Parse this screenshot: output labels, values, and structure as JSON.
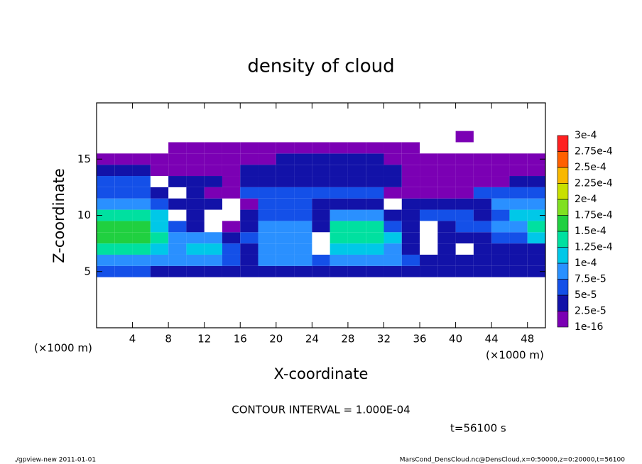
{
  "chart_data": {
    "type": "contour",
    "title": "density of cloud",
    "x_label": "X-coordinate",
    "y_label": "Z-coordinate",
    "x_unit_left": "(×1000 m)",
    "x_unit_right": "(×1000 m)",
    "contour_note": "CONTOUR INTERVAL = 1.000E-04",
    "time_note": "t=56100 s",
    "footer_left": "./gpview-new  2011-01-01",
    "footer_right": "MarsCond_DensCloud.nc@DensCloud,x=0:50000,z=0:20000,t=56100",
    "xlim": [
      0,
      50
    ],
    "ylim": [
      0,
      20
    ],
    "xticks": [
      4,
      8,
      12,
      16,
      20,
      24,
      28,
      32,
      36,
      40,
      44,
      48
    ],
    "yticks": [
      5,
      10,
      15
    ],
    "x": [
      1,
      3,
      5,
      7,
      9,
      11,
      13,
      15,
      17,
      19,
      21,
      23,
      25,
      27,
      29,
      31,
      33,
      35,
      37,
      39,
      41,
      43,
      45,
      47,
      49
    ],
    "y": [
      5,
      6,
      7,
      8,
      9,
      10,
      11,
      12,
      13,
      14,
      15,
      16,
      17
    ],
    "z": [
      [
        5e-05,
        5e-05,
        5e-05,
        4e-05,
        4e-05,
        4e-05,
        4e-05,
        4e-05,
        4e-05,
        4e-05,
        4e-05,
        4e-05,
        4e-05,
        4e-05,
        4e-05,
        4e-05,
        4e-05,
        4e-05,
        4e-05,
        4e-05,
        4e-05,
        4e-05,
        4e-05,
        4e-05,
        4e-05
      ],
      [
        9e-05,
        9e-05,
        9e-05,
        8e-05,
        8e-05,
        8e-05,
        8e-05,
        5e-05,
        4e-05,
        8e-05,
        8e-05,
        8e-05,
        5e-05,
        8e-05,
        8e-05,
        8e-05,
        8e-05,
        5e-05,
        3e-05,
        3e-05,
        3e-05,
        3e-05,
        3e-05,
        3e-05,
        3e-05
      ],
      [
        0.00013,
        0.00013,
        0.00013,
        0.00011,
        9e-05,
        0.00011,
        0.00011,
        6e-05,
        4e-05,
        9e-05,
        9e-05,
        9e-05,
        null,
        0.00012,
        0.00012,
        0.00012,
        9e-05,
        4e-05,
        null,
        3e-05,
        null,
        3e-05,
        4e-05,
        4e-05,
        4e-05
      ],
      [
        0.00015,
        0.00015,
        0.00015,
        0.00013,
        8e-05,
        9e-05,
        8e-05,
        4e-05,
        5e-05,
        9e-05,
        9e-05,
        9e-05,
        null,
        0.00014,
        0.00014,
        0.00014,
        0.0001,
        4e-05,
        null,
        3e-05,
        4e-05,
        3e-05,
        6e-05,
        6e-05,
        0.00011
      ],
      [
        0.00016,
        0.00016,
        0.00016,
        0.00012,
        5e-05,
        4e-05,
        null,
        2e-05,
        4e-05,
        8e-05,
        8e-05,
        8e-05,
        4e-05,
        0.00013,
        0.00013,
        0.00013,
        7e-05,
        3e-05,
        null,
        4e-05,
        5e-05,
        5e-05,
        8e-05,
        8e-05,
        0.00013
      ],
      [
        0.00014,
        0.00014,
        0.00014,
        0.00011,
        null,
        3e-05,
        null,
        null,
        3e-05,
        6e-05,
        6e-05,
        6e-05,
        3e-05,
        8e-05,
        8e-05,
        8e-05,
        4e-05,
        3e-05,
        5e-05,
        5e-05,
        5e-05,
        4e-05,
        7e-05,
        0.00011,
        0.00011
      ],
      [
        9e-05,
        9e-05,
        9e-05,
        6e-05,
        3e-05,
        3e-05,
        3e-05,
        null,
        2e-05,
        5e-05,
        5e-05,
        5e-05,
        4e-05,
        4e-05,
        4e-05,
        4e-05,
        null,
        3e-05,
        3e-05,
        3e-05,
        3e-05,
        3e-05,
        8e-05,
        8e-05,
        8e-05
      ],
      [
        7e-05,
        7e-05,
        7e-05,
        3e-05,
        null,
        4e-05,
        2e-05,
        2e-05,
        5e-05,
        5e-05,
        5e-05,
        5e-05,
        5e-05,
        5e-05,
        5e-05,
        5e-05,
        2e-05,
        2e-05,
        2e-05,
        2e-05,
        2e-05,
        6e-05,
        6e-05,
        6e-05,
        6e-05
      ],
      [
        5e-05,
        5e-05,
        5e-05,
        null,
        3e-05,
        3e-05,
        3e-05,
        2e-05,
        4e-05,
        4e-05,
        4e-05,
        4e-05,
        4e-05,
        4e-05,
        4e-05,
        4e-05,
        4e-05,
        2e-05,
        2e-05,
        2e-05,
        2e-05,
        2e-05,
        2e-05,
        4e-05,
        4e-05
      ],
      [
        3e-05,
        3e-05,
        3e-05,
        1e-05,
        1e-05,
        1e-05,
        1e-05,
        1e-05,
        4e-05,
        4e-05,
        4e-05,
        4e-05,
        4e-05,
        4e-05,
        4e-05,
        4e-05,
        4e-05,
        2e-05,
        2e-05,
        2e-05,
        2e-05,
        2e-05,
        2e-05,
        2e-05,
        2e-05
      ],
      [
        1e-05,
        1e-05,
        1e-05,
        1e-05,
        1e-05,
        1e-05,
        1e-05,
        1e-05,
        1e-05,
        1e-05,
        3e-05,
        3e-05,
        3e-05,
        3e-05,
        3e-05,
        3e-05,
        1e-05,
        1e-05,
        1e-05,
        1e-05,
        1e-05,
        1e-05,
        1e-05,
        1e-05,
        1e-05
      ],
      [
        null,
        null,
        null,
        null,
        1e-05,
        1e-05,
        1e-05,
        1e-05,
        1e-05,
        1e-05,
        1e-05,
        1e-05,
        1e-05,
        1e-05,
        1e-05,
        1e-05,
        1e-05,
        1e-05,
        null,
        null,
        null,
        null,
        null,
        null,
        null
      ],
      [
        null,
        null,
        null,
        null,
        null,
        null,
        null,
        null,
        null,
        null,
        null,
        null,
        null,
        null,
        null,
        null,
        null,
        null,
        null,
        null,
        1e-05,
        null,
        null,
        null,
        null
      ]
    ],
    "colorbar": {
      "levels": [
        1e-16,
        {
          "value": 2.5e-05,
          "label": "2.5e-5"
        },
        {
          "value": 5e-05,
          "label": "5e-5"
        },
        {
          "value": 7.5e-05,
          "label": "7.5e-5"
        },
        {
          "value": 0.0001,
          "label": "1e-4"
        },
        {
          "value": 0.000125,
          "label": "1.25e-4"
        },
        {
          "value": 0.00015,
          "label": "1.5e-4"
        },
        {
          "value": 0.000175,
          "label": "1.75e-4"
        },
        {
          "value": 0.0002,
          "label": "2e-4"
        },
        {
          "value": 0.000225,
          "label": "2.25e-4"
        },
        {
          "value": 0.00025,
          "label": "2.5e-4"
        },
        {
          "value": 0.000275,
          "label": "2.75e-4"
        },
        {
          "value": 0.0003,
          "label": "3e-4"
        }
      ],
      "colors": [
        "#7b00b4",
        "#1212a8",
        "#1450e8",
        "#2a90ff",
        "#00c8e8",
        "#00e0a0",
        "#20d040",
        "#80e020",
        "#c8e000",
        "#f8b800",
        "#ff6000",
        "#ff2020"
      ]
    }
  }
}
